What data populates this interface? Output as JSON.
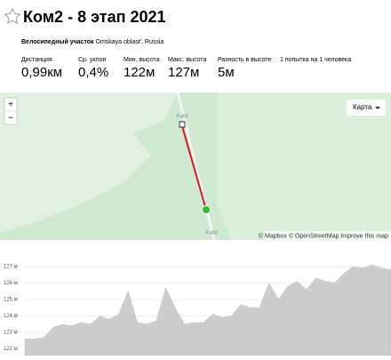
{
  "header": {
    "title": "Ком2 - 8 этап 2021",
    "segment_type": "Велосипедный участок",
    "location": "Omskaya oblast', Russia"
  },
  "stats": [
    {
      "label": "Дистанция",
      "value": "0,99км"
    },
    {
      "label": "Ср. уклон",
      "value": "0,4%"
    },
    {
      "label": "Мин. высота",
      "value": "122м"
    },
    {
      "label": "Макс. высота",
      "value": "127м"
    },
    {
      "label": "Разность в высоте",
      "value": "5м"
    },
    {
      "label": "1 попытка на 1 человека"
    }
  ],
  "map": {
    "zoom_in": "+",
    "zoom_out": "−",
    "layer_button": "Карта",
    "road_label_top": "Р-400",
    "road_label_bottom": "Р-400",
    "attribution": "© Mapbox © OpenStreetMap Improve this map"
  },
  "elevation_chart": {
    "type": "area",
    "color": "#cccccc",
    "ylim": [
      121.6,
      127.8
    ],
    "yticks": [
      {
        "value": 127,
        "label": "127 м"
      },
      {
        "value": 126,
        "label": "126 м"
      },
      {
        "value": 125,
        "label": "125 м"
      },
      {
        "value": 124,
        "label": "124 м"
      },
      {
        "value": 123,
        "label": "123 м"
      },
      {
        "value": 122,
        "label": "122 м"
      }
    ],
    "grid": true,
    "values": [
      122.6,
      122.6,
      122.7,
      123.3,
      123.5,
      123.4,
      123.6,
      123.5,
      124.0,
      123.8,
      124.1,
      125.5,
      123.6,
      123.5,
      123.7,
      125.7,
      124.5,
      123.5,
      123.6,
      123.6,
      124.1,
      123.9,
      124.0,
      124.7,
      124.5,
      124.5,
      126.0,
      125.0,
      125.8,
      126.1,
      125.6,
      126.3,
      126.1,
      126.0,
      126.6,
      127.0,
      126.9,
      127.1,
      126.9,
      126.8
    ]
  }
}
